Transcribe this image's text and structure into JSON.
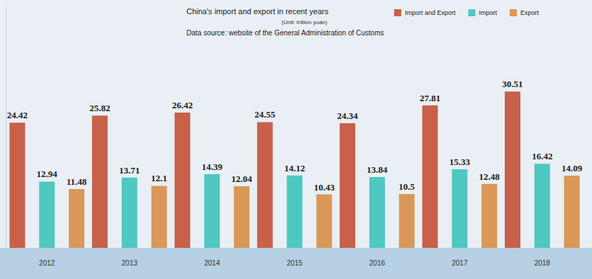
{
  "chart_data": {
    "type": "bar",
    "title": "China's import and export in recent years",
    "subtitle": "Data source: website of the General Administration of Customs",
    "annotations": [
      "(Unit: trillion yuan)"
    ],
    "categories": [
      "2012",
      "2013",
      "2014",
      "2015",
      "2016",
      "2017",
      "2018"
    ],
    "series": [
      {
        "name": "Import and Export",
        "color": "#c8604a",
        "values": [
          24.42,
          25.82,
          26.42,
          24.55,
          24.34,
          27.81,
          30.51
        ]
      },
      {
        "name": "Import",
        "color": "#4ec8c1",
        "values": [
          12.94,
          13.71,
          14.39,
          14.12,
          13.84,
          15.33,
          16.42
        ]
      },
      {
        "name": "Export",
        "color": "#d99858",
        "values": [
          11.48,
          12.1,
          12.04,
          10.43,
          10.5,
          12.48,
          14.09
        ]
      }
    ],
    "ylim": [
      0,
      47
    ],
    "grid": false,
    "legend": "top-right",
    "data_labels": true,
    "tick_labels": "x"
  }
}
